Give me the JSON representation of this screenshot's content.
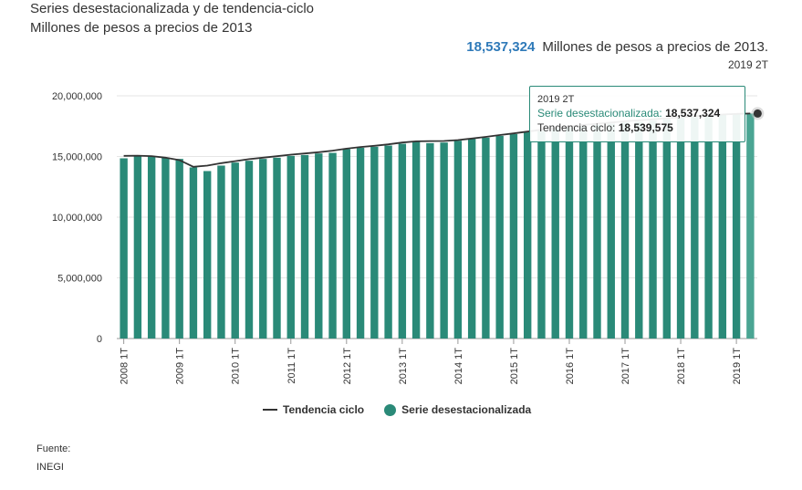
{
  "header": {
    "title": "Series desestacionalizada y de tendencia-ciclo",
    "subtitle": "Millones de pesos a precios de 2013",
    "headline_value": "18,537,324",
    "headline_unit": "Millones de pesos a precios de 2013.",
    "headline_period": "2019 2T"
  },
  "tooltip": {
    "period": "2019 2T",
    "series1_label": "Serie desestacionalizada:",
    "series1_value": "18,537,324",
    "series2_label": "Tendencia ciclo:",
    "series2_value": "18,539,575"
  },
  "legend": {
    "line_label": "Tendencia ciclo",
    "bar_label": "Serie desestacionalizada"
  },
  "footer": {
    "source_label": "Fuente:",
    "source_value": "INEGI"
  },
  "colors": {
    "bar": "#2a8a78",
    "bar_highlight": "#4aa593",
    "trend_line": "#333333",
    "grid": "#e6e6e6",
    "accent_value": "#2f7ab9"
  },
  "chart_data": {
    "type": "bar",
    "ylim": [
      0,
      20000000
    ],
    "yticks": [
      "0",
      "5,000,000",
      "10,000,000",
      "15,000,000",
      "20,000,000"
    ],
    "ytick_values": [
      0,
      5000000,
      10000000,
      15000000,
      20000000
    ],
    "xtick_labels": [
      "2008 1T",
      "2009 1T",
      "2010 1T",
      "2011 1T",
      "2012 1T",
      "2013 1T",
      "2014 1T",
      "2015 1T",
      "2016 1T",
      "2017 1T",
      "2018 1T",
      "2019 1T"
    ],
    "categories": [
      "2008 1T",
      "2008 2T",
      "2008 3T",
      "2008 4T",
      "2009 1T",
      "2009 2T",
      "2009 3T",
      "2009 4T",
      "2010 1T",
      "2010 2T",
      "2010 3T",
      "2010 4T",
      "2011 1T",
      "2011 2T",
      "2011 3T",
      "2011 4T",
      "2012 1T",
      "2012 2T",
      "2012 3T",
      "2012 4T",
      "2013 1T",
      "2013 2T",
      "2013 3T",
      "2013 4T",
      "2014 1T",
      "2014 2T",
      "2014 3T",
      "2014 4T",
      "2015 1T",
      "2015 2T",
      "2015 3T",
      "2015 4T",
      "2016 1T",
      "2016 2T",
      "2016 3T",
      "2016 4T",
      "2017 1T",
      "2017 2T",
      "2017 3T",
      "2017 4T",
      "2018 1T",
      "2018 2T",
      "2018 3T",
      "2018 4T",
      "2019 1T",
      "2019 2T"
    ],
    "series": [
      {
        "name": "Serie desestacionalizada",
        "type": "bar",
        "values": [
          14850000,
          15000000,
          15000000,
          14920000,
          14800000,
          14100000,
          13800000,
          14250000,
          14500000,
          14650000,
          14800000,
          14900000,
          15050000,
          15120000,
          15250000,
          15300000,
          15600000,
          15720000,
          15800000,
          15900000,
          16050000,
          16200000,
          16100000,
          16150000,
          16300000,
          16450000,
          16550000,
          16700000,
          16850000,
          17000000,
          17100000,
          17300000,
          17400000,
          17500000,
          17600000,
          17700000,
          17800000,
          17850000,
          17950000,
          18050000,
          18200000,
          18250000,
          18350000,
          18450000,
          18500000,
          18537324
        ]
      },
      {
        "name": "Tendencia ciclo",
        "type": "line",
        "values": [
          15050000,
          15070000,
          15030000,
          14900000,
          14700000,
          14150000,
          14250000,
          14450000,
          14620000,
          14780000,
          14900000,
          15020000,
          15150000,
          15250000,
          15350000,
          15480000,
          15650000,
          15780000,
          15880000,
          16000000,
          16150000,
          16250000,
          16270000,
          16280000,
          16350000,
          16480000,
          16620000,
          16770000,
          16900000,
          17050000,
          17200000,
          17350000,
          17480000,
          17600000,
          17700000,
          17800000,
          17900000,
          17980000,
          18060000,
          18150000,
          18250000,
          18320000,
          18400000,
          18460000,
          18510000,
          18539575
        ]
      }
    ]
  }
}
